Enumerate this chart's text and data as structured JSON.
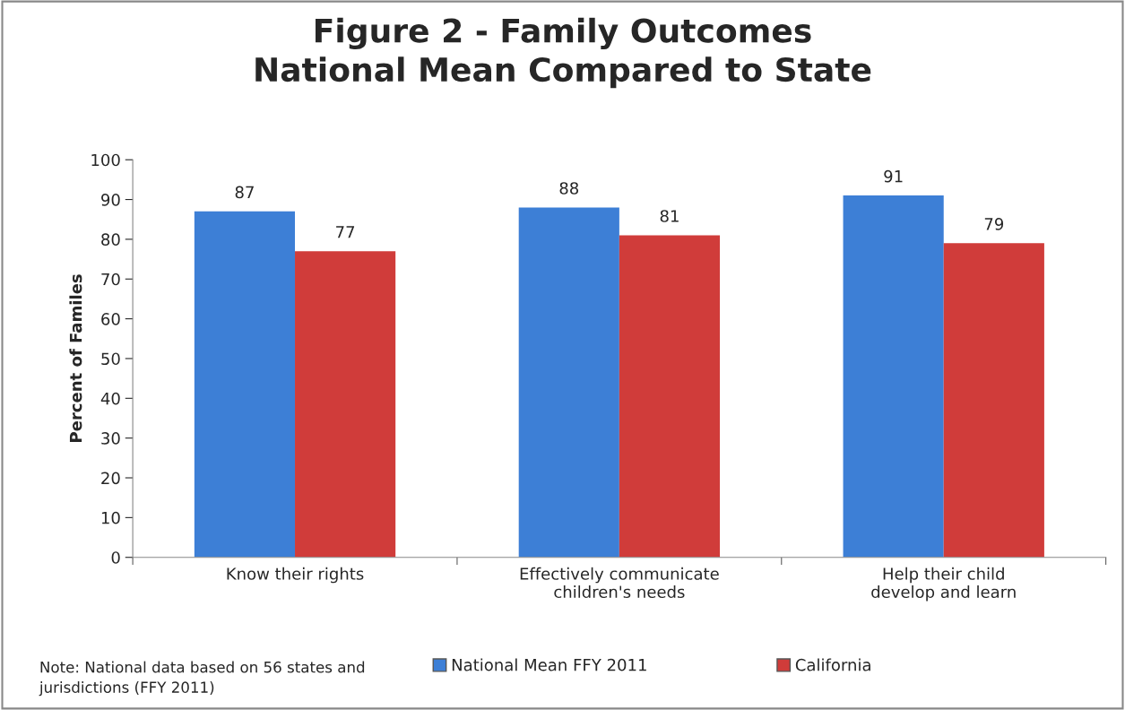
{
  "chart_data": {
    "type": "bar",
    "title": "Figure 2 - Family Outcomes\nNational Mean Compared to State",
    "ylabel": "Percent of Familes",
    "categories": [
      "Know their rights",
      "Effectively communicate\nchildren's needs",
      "Help their child\ndevelop and learn"
    ],
    "series": [
      {
        "name": "National Mean FFY 2011",
        "color": "#3d7fd6",
        "values": [
          87,
          88,
          91
        ]
      },
      {
        "name": "California",
        "color": "#d03c3a",
        "values": [
          77,
          81,
          79
        ]
      }
    ],
    "ylim": [
      0,
      100
    ],
    "yticks": [
      0,
      10,
      20,
      30,
      40,
      50,
      60,
      70,
      80,
      90,
      100
    ],
    "grid": false,
    "data_labels": true,
    "legend": "bottom",
    "annotations": [
      "Note: National data based on 56 states and\njurisdictions (FFY 2011)"
    ]
  }
}
